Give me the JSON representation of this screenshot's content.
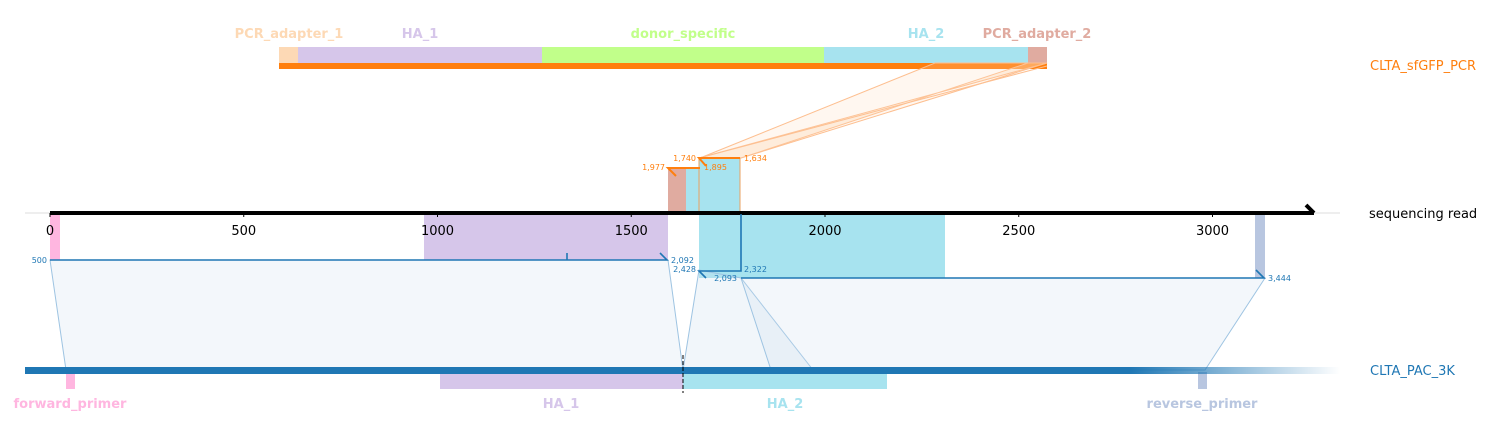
{
  "colors": {
    "read": "#000000",
    "pcr": "#ff7f0e",
    "pac": "#1f77b4",
    "pcr_adapter_1": "#fdd9b5",
    "ha_1": "#d6c6ea",
    "donor_specific": "#c1ff8a",
    "ha_2": "#a7e3ef",
    "pcr_adapter_2": "#e0aba0",
    "forward_primer": "#ffb6e0",
    "reverse_primer": "#b8c6e0"
  },
  "pcr_product": {
    "name": "CLTA_sfGFP_PCR",
    "features": [
      {
        "key": "pcr_adapter_1",
        "label": "PCR_adapter_1"
      },
      {
        "key": "ha_1",
        "label": "HA_1"
      },
      {
        "key": "donor_specific",
        "label": "donor_specific"
      },
      {
        "key": "ha_2",
        "label": "HA_2"
      },
      {
        "key": "pcr_adapter_2",
        "label": "PCR_adapter_2"
      }
    ]
  },
  "read": {
    "name": "sequencing read",
    "ticks": [
      "0",
      "500",
      "1000",
      "1500",
      "2000",
      "2500",
      "3000"
    ]
  },
  "pcr_alignment": {
    "coords": {
      "a": "1,977",
      "b": "1,740",
      "c": "1,895",
      "d": "1,634"
    }
  },
  "pac_alignments": {
    "coords": {
      "a": "500",
      "b": "2,092",
      "c": "2,428",
      "d": "2,093",
      "e": "2,322",
      "f": "3,444"
    }
  },
  "reference": {
    "name": "CLTA_PAC_3K",
    "features": [
      {
        "key": "forward_primer",
        "label": "forward_primer"
      },
      {
        "key": "ha_1",
        "label": "HA_1"
      },
      {
        "key": "ha_2",
        "label": "HA_2"
      },
      {
        "key": "reverse_primer",
        "label": "reverse_primer"
      }
    ]
  }
}
